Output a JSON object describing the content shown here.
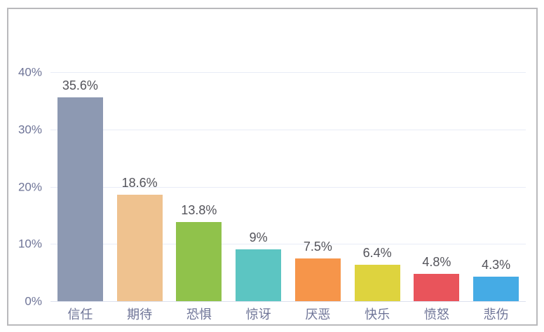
{
  "card": {
    "background": "#ffffff",
    "border_color": "#b9b9bc"
  },
  "chart_data": {
    "type": "bar",
    "categories": [
      "信任",
      "期待",
      "恐惧",
      "惊讶",
      "厌恶",
      "快乐",
      "愤怒",
      "悲伤"
    ],
    "values": [
      35.6,
      18.6,
      13.8,
      9,
      7.5,
      6.4,
      4.8,
      4.3
    ],
    "value_labels": [
      "35.6%",
      "18.6%",
      "13.8%",
      "9%",
      "7.5%",
      "6.4%",
      "4.8%",
      "4.3%"
    ],
    "bar_colors": [
      "#8d99b2",
      "#efc28f",
      "#90c24b",
      "#5cc5c2",
      "#f6954a",
      "#ded33e",
      "#e9545b",
      "#45abe5"
    ],
    "title": "",
    "xlabel": "",
    "ylabel": "",
    "ylim": [
      0,
      40
    ],
    "yticks": [
      {
        "value": 0,
        "label": "0%"
      },
      {
        "value": 10,
        "label": "10%"
      },
      {
        "value": 20,
        "label": "20%"
      },
      {
        "value": 30,
        "label": "30%"
      },
      {
        "value": 40,
        "label": "40%"
      }
    ],
    "grid": true,
    "legend": false,
    "colors": {
      "axis_label": "#6e7497",
      "value_label": "#53535a",
      "gridline": "#e8ecf7",
      "axis_line": "#dde1ee"
    }
  }
}
